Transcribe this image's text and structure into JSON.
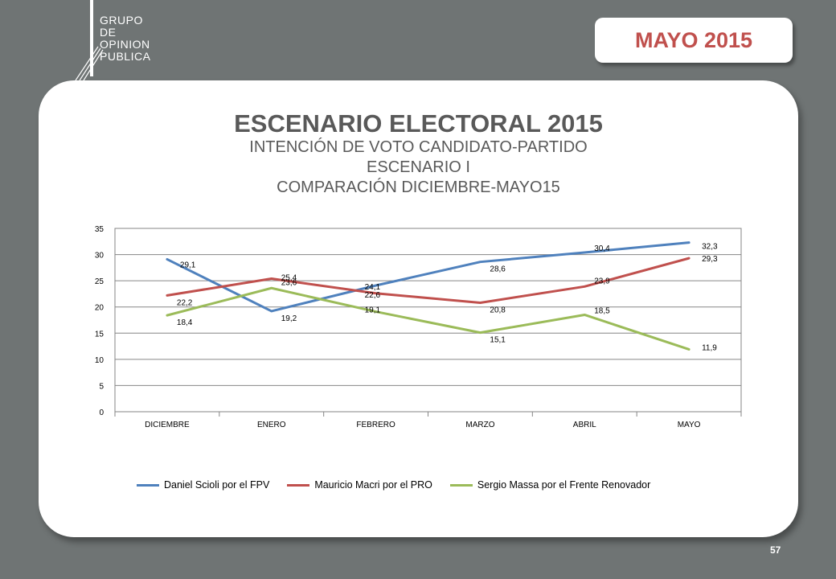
{
  "brand": {
    "lines": [
      "GRUPO",
      "DE",
      "OPINION",
      "PUBLICA"
    ]
  },
  "date_badge": "MAYO 2015",
  "page_number": "57",
  "title": "ESCENARIO ELECTORAL 2015",
  "subtitle_lines": [
    "INTENCIÓN DE VOTO CANDIDATO-PARTIDO",
    "ESCENARIO I",
    "COMPARACIÓN DICIEMBRE-MAYO15"
  ],
  "colors": {
    "background": "#6f7474",
    "accent": "#c0504d",
    "series_1": "#4f81bd",
    "series_2": "#c0504d",
    "series_3": "#9bbb59"
  },
  "chart_data": {
    "type": "line",
    "categories": [
      "DICIEMBRE",
      "ENERO",
      "FEBRERO",
      "MARZO",
      "ABRIL",
      "MAYO"
    ],
    "ylim": [
      0,
      35
    ],
    "yticks": [
      0,
      5,
      10,
      15,
      20,
      25,
      30,
      35
    ],
    "grid": true,
    "legend": "bottom",
    "series": [
      {
        "name": "Daniel Scioli por el FPV",
        "values": [
          29.1,
          19.2,
          24.1,
          28.6,
          30.4,
          32.3
        ],
        "labels": [
          "29,1",
          "19,2",
          "24,1",
          "28,6",
          "30,4",
          "32,3"
        ]
      },
      {
        "name": "Mauricio Macri por el PRO",
        "values": [
          22.2,
          25.4,
          22.6,
          20.8,
          23.9,
          29.3
        ],
        "labels": [
          "22,2",
          "25,4",
          "22,6",
          "20,8",
          "23,9",
          "29,3"
        ]
      },
      {
        "name": "Sergio Massa por el Frente Renovador",
        "values": [
          18.4,
          23.6,
          19.1,
          15.1,
          18.5,
          11.9
        ],
        "labels": [
          "18,4",
          "23,6",
          "19,1",
          "15,1",
          "18,5",
          "11,9"
        ]
      }
    ]
  }
}
